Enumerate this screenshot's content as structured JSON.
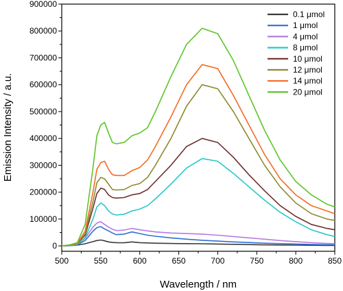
{
  "chart_data": {
    "type": "line",
    "title": "",
    "xlabel": "Wavelength / nm",
    "ylabel": "Emission Intensity / a.u.",
    "xlim": [
      500,
      850
    ],
    "ylim": [
      -20000,
      900000
    ],
    "xticks": [
      "500",
      "550",
      "600",
      "650",
      "700",
      "750",
      "800",
      "850"
    ],
    "yticks": [
      "0",
      "100000",
      "200000",
      "300000",
      "400000",
      "500000",
      "600000",
      "700000",
      "800000",
      "900000"
    ],
    "grid": false,
    "legend_position": "top-right",
    "x": [
      500,
      510,
      520,
      530,
      540,
      545,
      550,
      555,
      560,
      565,
      570,
      580,
      590,
      600,
      610,
      620,
      640,
      660,
      680,
      700,
      720,
      740,
      760,
      780,
      800,
      820,
      840,
      850
    ],
    "series": [
      {
        "name": "0.1 μmol",
        "color": "#3a3a3a",
        "values": [
          0,
          1000,
          3000,
          8000,
          16000,
          20000,
          22000,
          19000,
          15000,
          13000,
          12000,
          11500,
          15000,
          12000,
          11000,
          10000,
          9000,
          8500,
          8000,
          7000,
          6000,
          5000,
          4000,
          3500,
          3000,
          2500,
          2000,
          1800
        ]
      },
      {
        "name": "1 μmol",
        "color": "#2e6fd1",
        "values": [
          0,
          1500,
          4000,
          20000,
          55000,
          68000,
          72000,
          63000,
          56000,
          48000,
          42000,
          44000,
          52000,
          46000,
          40000,
          36000,
          30000,
          25000,
          21000,
          18000,
          15000,
          12500,
          10000,
          8500,
          7000,
          5500,
          4500,
          4000
        ]
      },
      {
        "name": "4 μmol",
        "color": "#b57be0",
        "values": [
          0,
          2000,
          6000,
          28000,
          70000,
          85000,
          90000,
          80000,
          70000,
          62000,
          57000,
          59000,
          65000,
          60000,
          56000,
          52000,
          48000,
          46000,
          44000,
          40000,
          35000,
          30000,
          25000,
          20000,
          16000,
          12000,
          9000,
          8000
        ]
      },
      {
        "name": "8 μmol",
        "color": "#27c7c7",
        "values": [
          0,
          2000,
          5000,
          30000,
          100000,
          145000,
          160000,
          150000,
          130000,
          119000,
          115000,
          118000,
          130000,
          137000,
          150000,
          175000,
          230000,
          290000,
          325000,
          315000,
          270000,
          220000,
          170000,
          125000,
          90000,
          60000,
          42000,
          35000
        ]
      },
      {
        "name": "10 μmol",
        "color": "#6e2e2e",
        "values": [
          0,
          3000,
          8000,
          40000,
          140000,
          195000,
          215000,
          210000,
          190000,
          180000,
          178000,
          180000,
          190000,
          195000,
          210000,
          240000,
          300000,
          370000,
          400000,
          385000,
          330000,
          265000,
          205000,
          150000,
          110000,
          80000,
          65000,
          60000
        ]
      },
      {
        "name": "12 μmol",
        "color": "#8c8a2e",
        "values": [
          0,
          3000,
          8000,
          45000,
          165000,
          235000,
          255000,
          250000,
          230000,
          210000,
          208000,
          210000,
          225000,
          232000,
          255000,
          300000,
          400000,
          520000,
          600000,
          585000,
          500000,
          400000,
          300000,
          220000,
          160000,
          120000,
          100000,
          95000
        ]
      },
      {
        "name": "14 μmol",
        "color": "#f36a24",
        "values": [
          0,
          3000,
          9000,
          55000,
          200000,
          285000,
          310000,
          315000,
          285000,
          265000,
          262000,
          262000,
          280000,
          292000,
          320000,
          370000,
          480000,
          600000,
          675000,
          660000,
          560000,
          450000,
          340000,
          250000,
          190000,
          150000,
          130000,
          120000
        ]
      },
      {
        "name": "20 μmol",
        "color": "#5ec42a",
        "values": [
          0,
          4000,
          12000,
          80000,
          290000,
          410000,
          450000,
          460000,
          420000,
          385000,
          380000,
          385000,
          410000,
          420000,
          440000,
          500000,
          630000,
          750000,
          810000,
          790000,
          690000,
          560000,
          430000,
          320000,
          240000,
          190000,
          155000,
          145000
        ]
      }
    ]
  }
}
